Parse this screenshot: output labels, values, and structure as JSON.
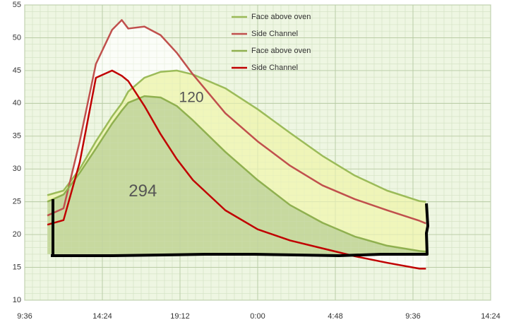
{
  "chart_data": {
    "type": "line",
    "x": [
      11,
      12,
      13,
      14,
      15,
      15.6,
      16,
      17,
      18,
      19,
      20,
      22,
      24,
      26,
      28,
      30,
      32,
      34,
      34.4
    ],
    "series": [
      {
        "name": "Face above oven",
        "color": "#9bbb59",
        "values": [
          26,
          26.7,
          30,
          34.2,
          38,
          40,
          41.8,
          43.9,
          44.8,
          45,
          44.4,
          42.3,
          39.1,
          35.5,
          32,
          29,
          26.7,
          25.1,
          25
        ]
      },
      {
        "name": "Side Channel",
        "color": "#c0504d",
        "values": [
          22.9,
          24,
          34.2,
          46,
          51.2,
          52.7,
          51.4,
          51.7,
          50.4,
          47.7,
          44.4,
          38.5,
          34.2,
          30.5,
          27.5,
          25.4,
          23.7,
          22.1,
          21.7
        ]
      },
      {
        "name": "Face above oven",
        "color": "#8fb04f",
        "values": [
          25,
          26.1,
          29.4,
          33.1,
          36.9,
          38.9,
          40.1,
          41.1,
          40.9,
          39.6,
          37.4,
          32.6,
          28.3,
          24.5,
          21.8,
          19.7,
          18.3,
          17.5,
          17.4
        ]
      },
      {
        "name": "Side Channel",
        "color": "#c00000",
        "values": [
          21.5,
          22.2,
          31,
          43.9,
          45,
          44.2,
          43.4,
          39.6,
          35.3,
          31.5,
          28.3,
          23.7,
          20.8,
          19.1,
          17.9,
          16.7,
          15.7,
          14.8,
          14.8
        ]
      }
    ],
    "xlim": [
      9.6,
      38.4
    ],
    "xticks": [
      {
        "value": 9.6,
        "label": "9:36"
      },
      {
        "value": 14.4,
        "label": "14:24"
      },
      {
        "value": 19.2,
        "label": "19:12"
      },
      {
        "value": 24,
        "label": "0:00"
      },
      {
        "value": 28.8,
        "label": "4:48"
      },
      {
        "value": 33.6,
        "label": "9:36"
      },
      {
        "value": 38.4,
        "label": "14:24"
      }
    ],
    "ylim": [
      10,
      55
    ],
    "yticks": [
      10,
      15,
      20,
      25,
      30,
      35,
      40,
      45,
      50,
      55
    ],
    "annotations": [
      {
        "text": "120",
        "x": 19.9,
        "y": 40.8
      },
      {
        "text": "294",
        "x": 16.9,
        "y": 26.5
      }
    ],
    "grid": true,
    "legend": "upper right"
  }
}
